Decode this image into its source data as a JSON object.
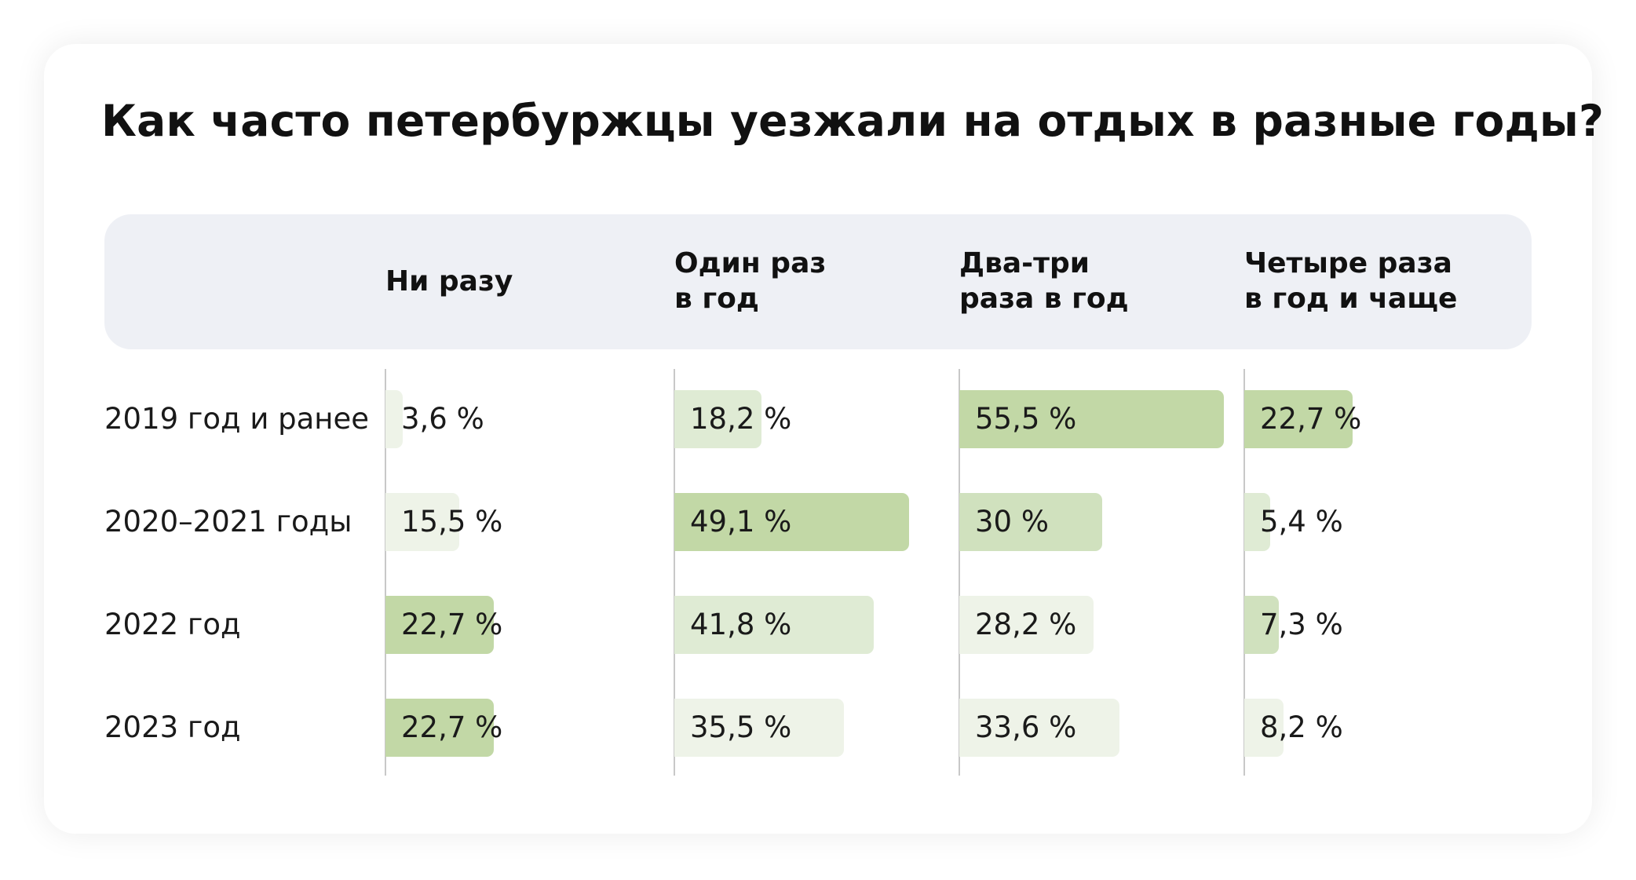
{
  "title": "Как часто петербуржцы уезжали на отдых в разные годы?",
  "colors": {
    "level1": "#eef3e8",
    "level2": "#dfebd4",
    "level3": "#d0e1be",
    "level4": "#c2d8a6",
    "header_band": "#eef0f5"
  },
  "chart_data": {
    "type": "bar",
    "title": "Как часто петербуржцы уезжали на отдых в разные годы?",
    "categories": [
      "2019 год и ранее",
      "2020–2021 годы",
      "2022 год",
      "2023 год"
    ],
    "columns": [
      "Ни разу",
      "Один раз\nв год",
      "Два-три\nраза в год",
      "Четыре раза\nв год и чаще"
    ],
    "series": [
      {
        "name": "Ни разу",
        "values": [
          3.6,
          15.5,
          22.7,
          22.7
        ],
        "labels": [
          "3,6 %",
          "15,5 %",
          "22,7 %",
          "22,7 %"
        ]
      },
      {
        "name": "Один раз в год",
        "values": [
          18.2,
          49.1,
          41.8,
          35.5
        ],
        "labels": [
          "18,2 %",
          "49,1 %",
          "41,8 %",
          "35,5 %"
        ]
      },
      {
        "name": "Два-три раза в год",
        "values": [
          55.5,
          30,
          28.2,
          33.6
        ],
        "labels": [
          "55,5 %",
          "30 %",
          "28,2 %",
          "33,6 %"
        ]
      },
      {
        "name": "Четыре раза в год и чаще",
        "values": [
          22.7,
          5.4,
          7.3,
          8.2
        ],
        "labels": [
          "22,7 %",
          "5,4 %",
          "7,3 %",
          "8,2 %"
        ]
      }
    ],
    "shade_levels": [
      [
        1,
        2,
        4,
        4
      ],
      [
        1,
        4,
        3,
        2
      ],
      [
        4,
        2,
        1,
        3
      ],
      [
        4,
        1,
        1,
        1
      ]
    ],
    "xlim": [
      0,
      100
    ],
    "grid": false,
    "legend": "none"
  }
}
